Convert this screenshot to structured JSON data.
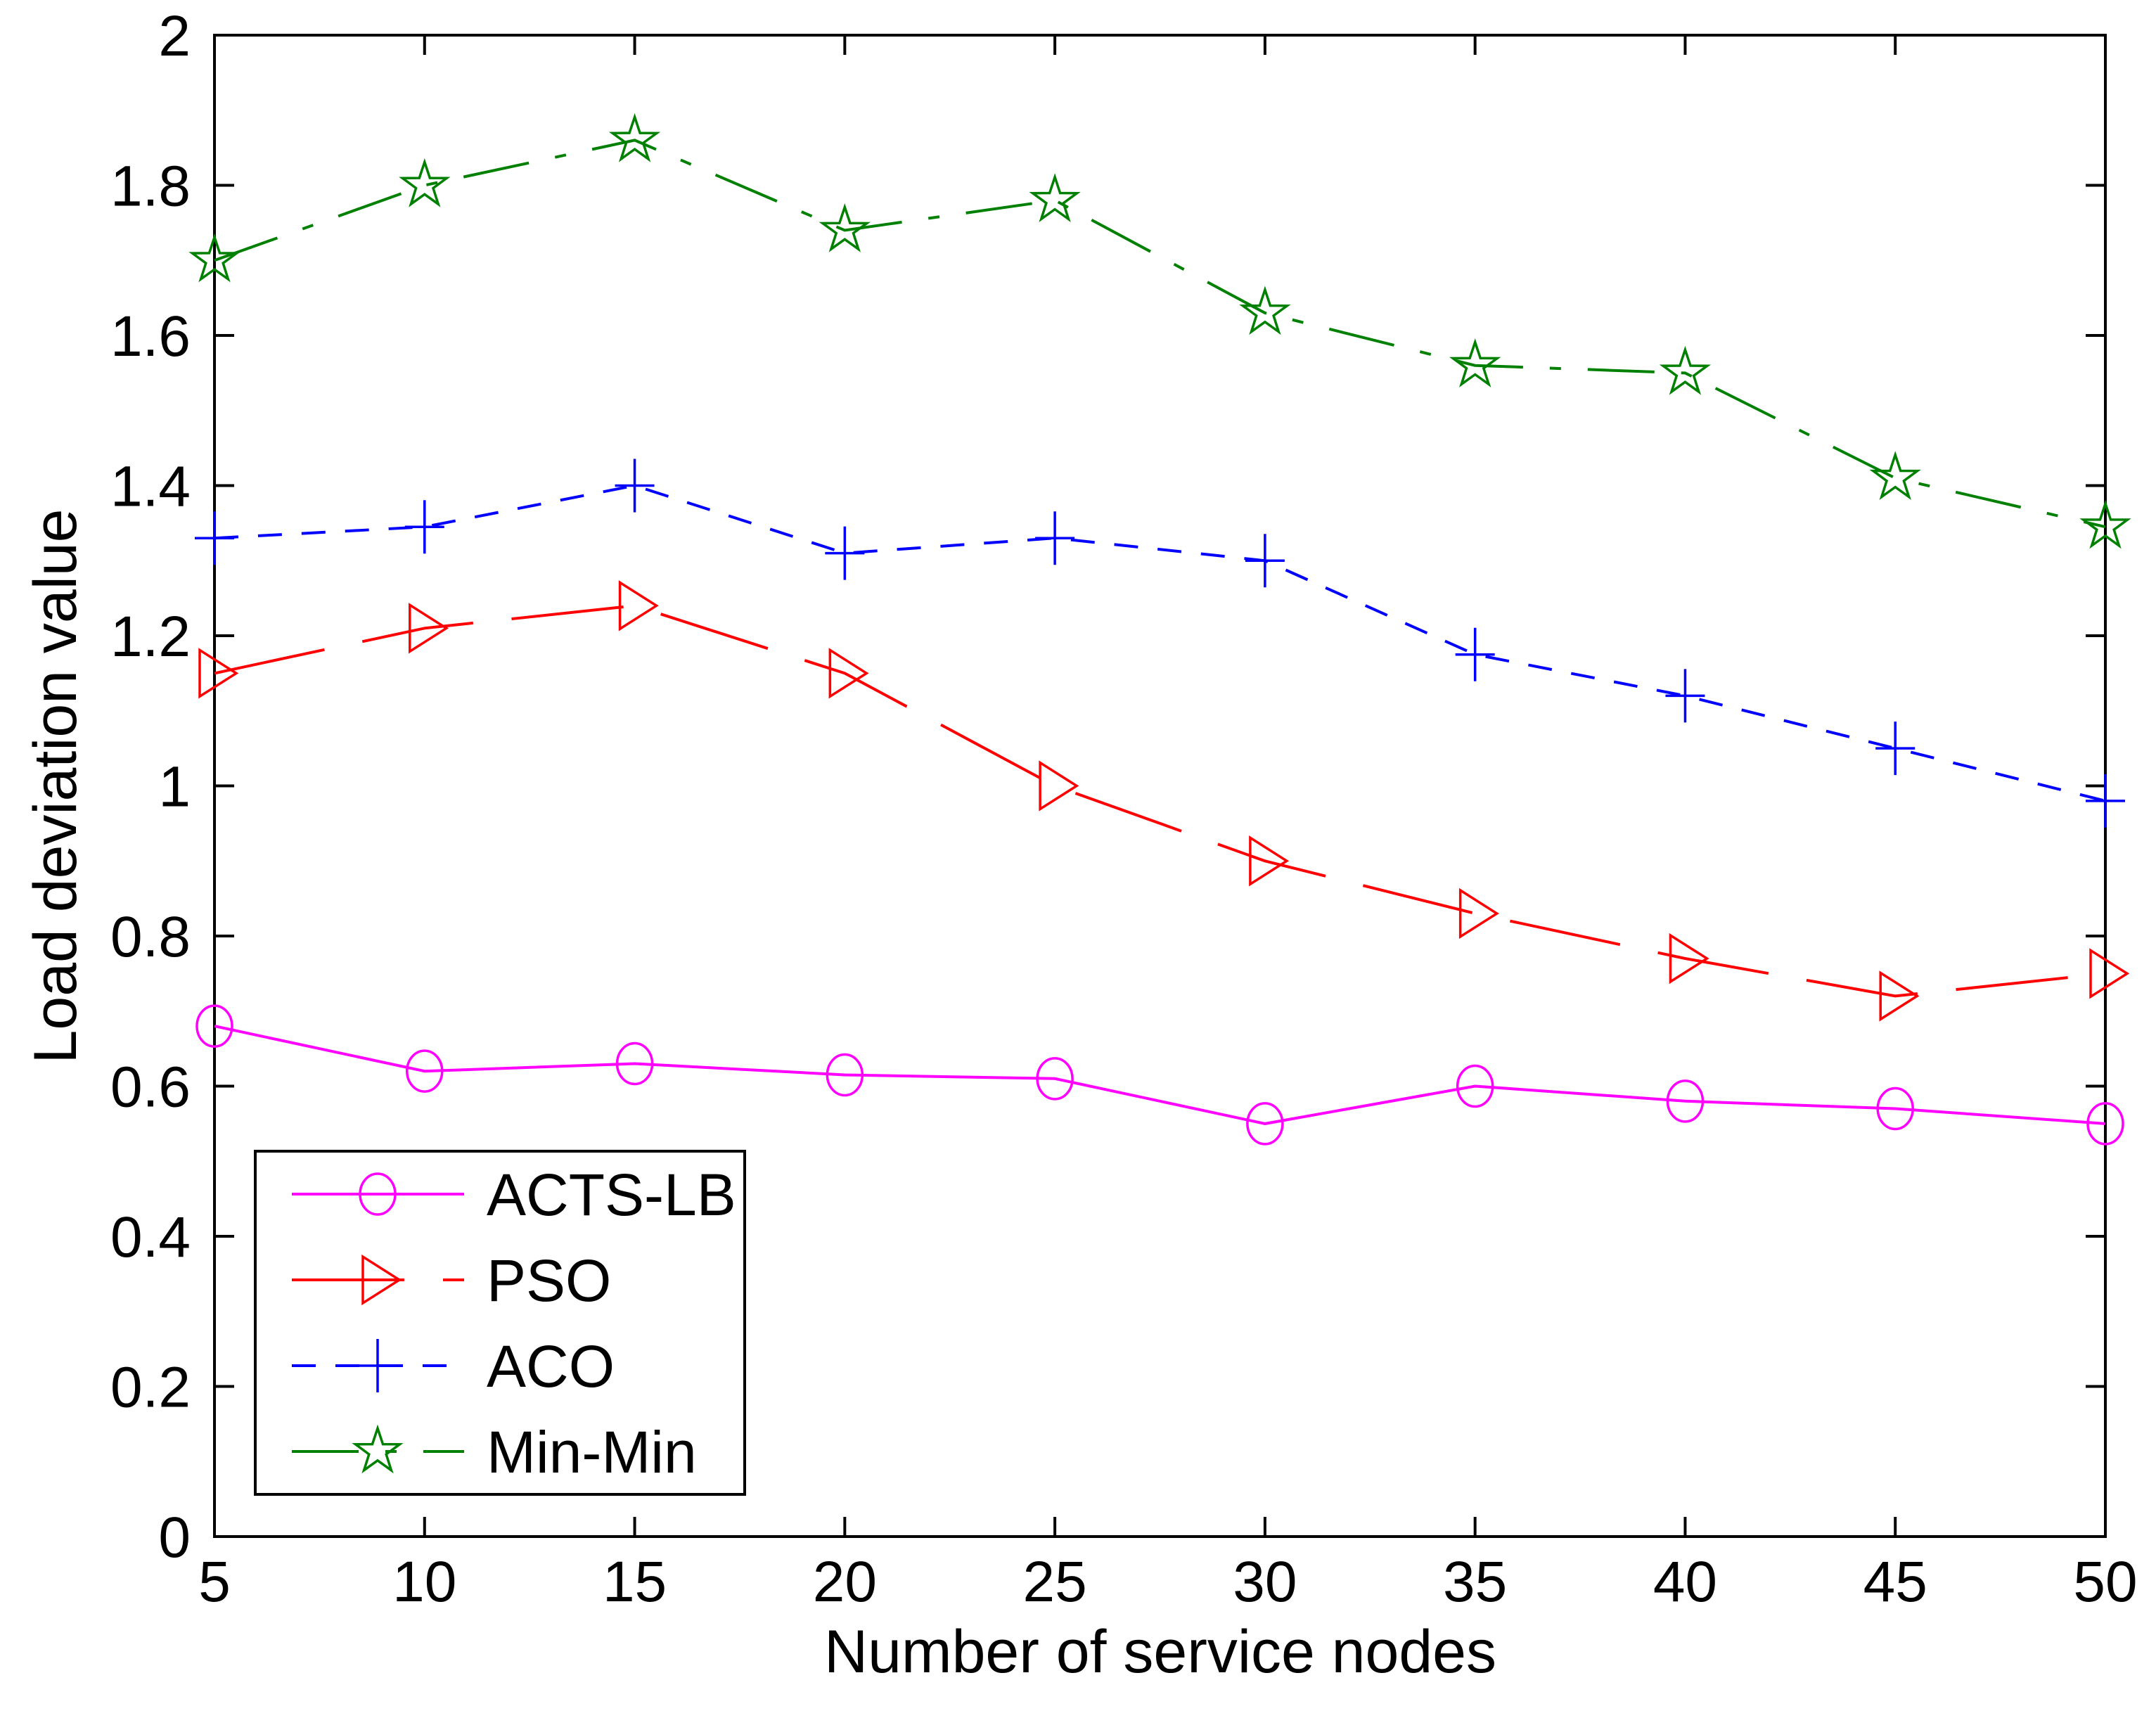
{
  "chart_data": {
    "type": "line",
    "title": "",
    "xlabel": "Number of service nodes",
    "ylabel": "Load deviation value",
    "xlim": [
      5,
      50
    ],
    "ylim": [
      0,
      2
    ],
    "grid": false,
    "legend_position": "lower-left",
    "x_ticks": [
      5,
      10,
      15,
      20,
      25,
      30,
      35,
      40,
      45,
      50
    ],
    "y_ticks": [
      0,
      0.2,
      0.4,
      0.6,
      0.8,
      1,
      1.2,
      1.4,
      1.6,
      1.8,
      2
    ],
    "x": [
      5,
      10,
      15,
      20,
      25,
      30,
      35,
      40,
      45,
      50
    ],
    "series": [
      {
        "name": "ACTS-LB",
        "color": "#ff00ff",
        "line_style": "solid",
        "marker": "circle",
        "values": [
          0.68,
          0.62,
          0.63,
          0.615,
          0.61,
          0.55,
          0.6,
          0.58,
          0.57,
          0.55
        ]
      },
      {
        "name": "PSO",
        "color": "#ff0000",
        "line_style": "long-dash",
        "marker": "triangle-right",
        "values": [
          1.15,
          1.21,
          1.24,
          1.15,
          1.0,
          0.9,
          0.83,
          0.77,
          0.72,
          0.75
        ]
      },
      {
        "name": "ACO",
        "color": "#0000ff",
        "line_style": "dash",
        "marker": "plus",
        "values": [
          1.33,
          1.345,
          1.4,
          1.31,
          1.33,
          1.3,
          1.175,
          1.12,
          1.05,
          0.98
        ]
      },
      {
        "name": "Min-Min",
        "color": "#008000",
        "line_style": "dash-dot",
        "marker": "star",
        "values": [
          1.7,
          1.8,
          1.86,
          1.74,
          1.78,
          1.63,
          1.56,
          1.55,
          1.41,
          1.345
        ]
      }
    ]
  }
}
